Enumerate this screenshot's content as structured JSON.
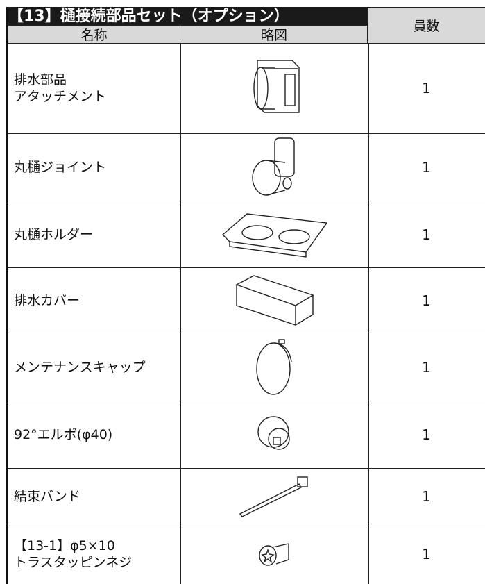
{
  "header": {
    "title": "【13】樋接続部品セット（オプション）",
    "columns": [
      "名称",
      "略図",
      "員数"
    ]
  },
  "table": {
    "rows": [
      {
        "name": [
          "排水部品",
          "アタッチメント"
        ],
        "count": 1
      },
      {
        "name": [
          "丸樋ジョイント"
        ],
        "count": 1
      },
      {
        "name": [
          "丸樋ホルダー"
        ],
        "count": 1
      },
      {
        "name": [
          "排水カバー"
        ],
        "count": 1
      },
      {
        "name": [
          "メンテナンスキャップ"
        ],
        "count": 1
      },
      {
        "name": [
          "92°エルボ(φ40)"
        ],
        "count": 1
      },
      {
        "name": [
          "結束バンド"
        ],
        "count": 1
      },
      {
        "name": [
          "【13-1】φ5×10",
          "トラスタッピンネジ"
        ],
        "count": 1
      }
    ]
  }
}
